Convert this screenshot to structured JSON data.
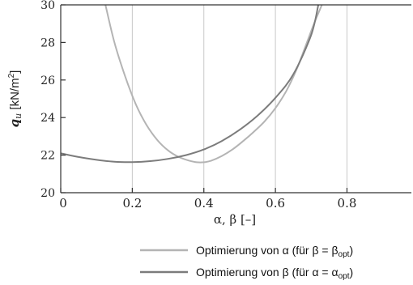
{
  "chart_data": {
    "type": "line",
    "xlabel": "α, β [–]",
    "ylabel_symbol": "q",
    "ylabel_sub": "u",
    "ylabel_unit": " [kN/m",
    "ylabel_sup": "2",
    "ylabel_close": "]",
    "xlim": [
      0,
      0.98
    ],
    "ylim": [
      20,
      30
    ],
    "x_ticks": [
      0,
      0.2,
      0.4,
      0.6,
      0.8
    ],
    "x_tick_labels": [
      "0",
      "0.2",
      "0.4",
      "0.6",
      "0.8"
    ],
    "y_ticks": [
      20,
      22,
      24,
      26,
      28,
      30
    ],
    "y_tick_labels": [
      "20",
      "22",
      "24",
      "26",
      "28",
      "30"
    ],
    "grid": "vertical",
    "legend_position": "bottom-right",
    "series": [
      {
        "legend": {
          "pre": "Optimierung von α (für β = β",
          "sub": "opt",
          "post": ")"
        },
        "color": "#b4b4b4",
        "x": [
          0.125,
          0.15,
          0.18,
          0.21,
          0.24,
          0.27,
          0.3,
          0.33,
          0.36,
          0.38,
          0.4,
          0.42,
          0.45,
          0.48,
          0.51,
          0.54,
          0.57,
          0.6,
          0.63,
          0.66,
          0.69,
          0.71,
          0.73
        ],
        "y": [
          30.0,
          28.0,
          26.2,
          24.7,
          23.6,
          22.8,
          22.25,
          21.9,
          21.7,
          21.62,
          21.62,
          21.7,
          21.95,
          22.3,
          22.75,
          23.25,
          23.8,
          24.5,
          25.4,
          26.6,
          28.1,
          29.1,
          30.0
        ]
      },
      {
        "legend": {
          "pre": "Optimierung von β (für α = α",
          "sub": "opt",
          "post": ")"
        },
        "color": "#7c7c7c",
        "x": [
          0.0,
          0.05,
          0.1,
          0.15,
          0.2,
          0.25,
          0.3,
          0.35,
          0.4,
          0.45,
          0.5,
          0.55,
          0.6,
          0.65,
          0.7,
          0.72
        ],
        "y": [
          22.1,
          21.9,
          21.75,
          21.65,
          21.63,
          21.68,
          21.8,
          22.0,
          22.3,
          22.75,
          23.35,
          24.1,
          25.05,
          26.3,
          28.4,
          30.0
        ]
      }
    ]
  }
}
